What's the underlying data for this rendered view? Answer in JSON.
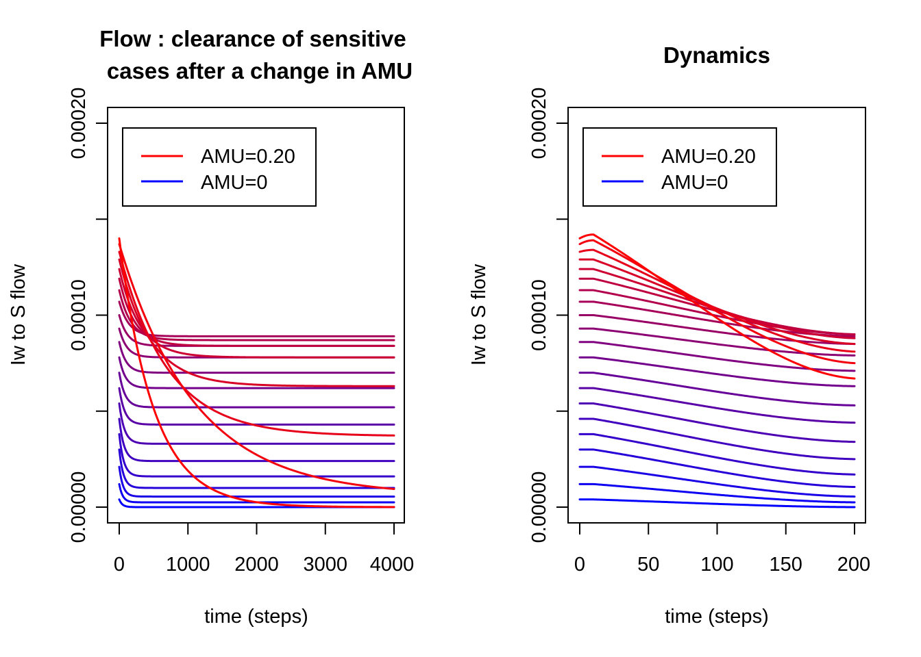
{
  "colors": {
    "high_amu": "#FF0000",
    "zero_amu": "#0000FF"
  },
  "chart_data": [
    {
      "type": "line",
      "title_lines": [
        "Flow : clearance of sensitive",
        "cases after a change in AMU"
      ],
      "xlabel": "time (steps)",
      "ylabel": "Iw to S flow",
      "xlim": [
        0,
        4000
      ],
      "ylim": [
        0,
        0.0002
      ],
      "xticks": [
        0,
        1000,
        2000,
        3000,
        4000
      ],
      "xtick_labels": [
        "0",
        "1000",
        "2000",
        "3000",
        "4000"
      ],
      "yticks": [
        0,
        5e-05,
        0.0001,
        0.00015,
        0.0002
      ],
      "ytick_labels": [
        "0.00000",
        "",
        "0.00010",
        "",
        "0.00020"
      ],
      "grid": false,
      "legend": {
        "position": "top-left",
        "entries": [
          {
            "label": "AMU=0.20",
            "color": "#FF0000"
          },
          {
            "label": "AMU=0",
            "color": "#0000FF"
          }
        ]
      },
      "series_count": 21,
      "series_color_scale": "blue (AMU=0) to red (AMU=0.20)",
      "series_start_y": [
        0.00014,
        0.000137,
        0.000133,
        0.000129,
        0.000124,
        0.000119,
        0.000113,
        0.000107,
        0.0001,
        9.3e-05,
        8.6e-05,
        7.8e-05,
        7e-05,
        6.2e-05,
        5.4e-05,
        4.6e-05,
        3.8e-05,
        3e-05,
        2.1e-05,
        1.2e-05,
        4e-06
      ],
      "series_final_y": [
        0,
        6e-06,
        3.7e-05,
        6.3e-05,
        7.8e-05,
        8.4e-05,
        8.7e-05,
        8.9e-05,
        8.4e-05,
        7.8e-05,
        7e-05,
        6.2e-05,
        5.2e-05,
        4.3e-05,
        3.3e-05,
        2.4e-05,
        1.6e-05,
        1e-05,
        5.5e-06,
        2.5e-06,
        0
      ],
      "series_tau": [
        500,
        1100,
        700,
        450,
        300,
        220,
        170,
        140,
        120,
        110,
        100,
        90,
        85,
        80,
        75,
        70,
        65,
        60,
        55,
        50,
        45
      ]
    },
    {
      "type": "line",
      "title_lines": [
        "Dynamics"
      ],
      "xlabel": "time (steps)",
      "ylabel": "Iw to S flow",
      "xlim": [
        0,
        200
      ],
      "ylim": [
        0,
        0.0002
      ],
      "xticks": [
        0,
        50,
        100,
        150,
        200
      ],
      "xtick_labels": [
        "0",
        "50",
        "100",
        "150",
        "200"
      ],
      "yticks": [
        0,
        5e-05,
        0.0001,
        0.00015,
        0.0002
      ],
      "ytick_labels": [
        "0.00000",
        "",
        "0.00010",
        "",
        "0.00020"
      ],
      "grid": false,
      "legend": {
        "position": "top-left",
        "entries": [
          {
            "label": "AMU=0.20",
            "color": "#FF0000"
          },
          {
            "label": "AMU=0",
            "color": "#0000FF"
          }
        ]
      },
      "series_count": 21,
      "series_color_scale": "blue (AMU=0) to red (AMU=0.20)",
      "series_start_y": [
        0.00014,
        0.000137,
        0.000133,
        0.000129,
        0.000124,
        0.000119,
        0.000113,
        0.000107,
        0.0001,
        9.3e-05,
        8.6e-05,
        7.8e-05,
        7e-05,
        6.2e-05,
        5.4e-05,
        4.6e-05,
        3.8e-05,
        3e-05,
        2.1e-05,
        1.2e-05,
        4e-06
      ],
      "series_peak_y": [
        0.000142,
        0.000139,
        0.000134,
        0.000129,
        0.000124,
        0.000119,
        0.000113,
        0.000107,
        0.0001,
        9.3e-05,
        8.6e-05,
        7.8e-05,
        7e-05,
        6.2e-05,
        5.4e-05,
        4.6e-05,
        3.8e-05,
        3e-05,
        2.1e-05,
        1.2e-05,
        4e-06
      ],
      "series_end_y": [
        6.7e-05,
        7.5e-05,
        8.1e-05,
        8.5e-05,
        8.8e-05,
        9e-05,
        9e-05,
        8.9e-05,
        8.5e-05,
        7.9e-05,
        7.1e-05,
        6.3e-05,
        5.3e-05,
        4.4e-05,
        3.4e-05,
        2.5e-05,
        1.7e-05,
        1.05e-05,
        5.5e-06,
        2.5e-06,
        0
      ]
    }
  ]
}
